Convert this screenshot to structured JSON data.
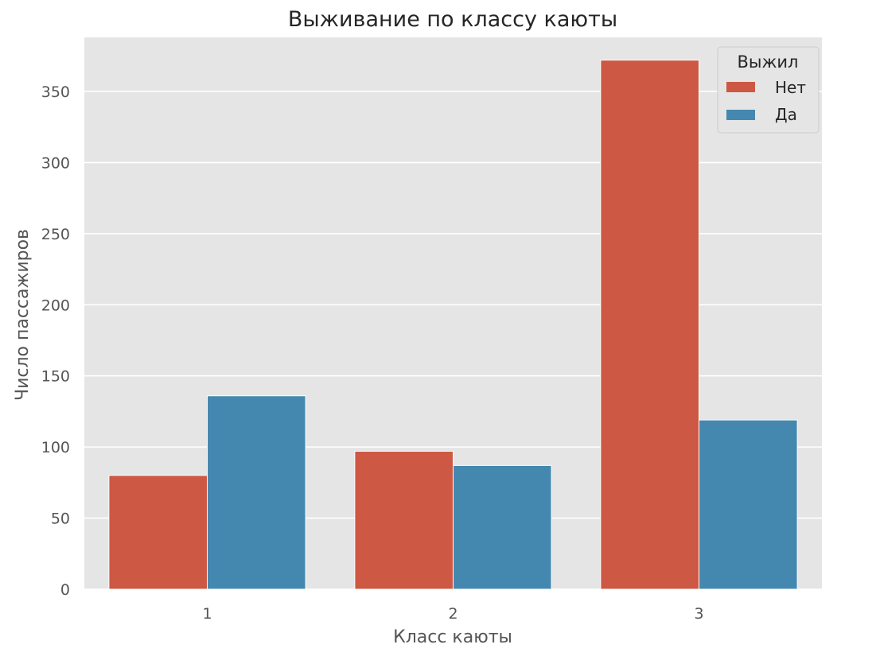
{
  "chart_data": {
    "type": "bar",
    "title": "Выживание по классу каюты",
    "xlabel": "Класс каюты",
    "ylabel": "Число пассажиров",
    "categories": [
      "1",
      "2",
      "3"
    ],
    "series": [
      {
        "name": "Нет",
        "values": [
          80,
          97,
          372
        ],
        "color": "#cd5843"
      },
      {
        "name": "Да",
        "values": [
          136,
          87,
          119
        ],
        "color": "#4588af"
      }
    ],
    "ylim": [
      0,
      388
    ],
    "yticks": [
      0,
      50,
      100,
      150,
      200,
      250,
      300,
      350
    ],
    "grid": true,
    "legend": {
      "title": "Выжил",
      "position": "top-right"
    }
  }
}
